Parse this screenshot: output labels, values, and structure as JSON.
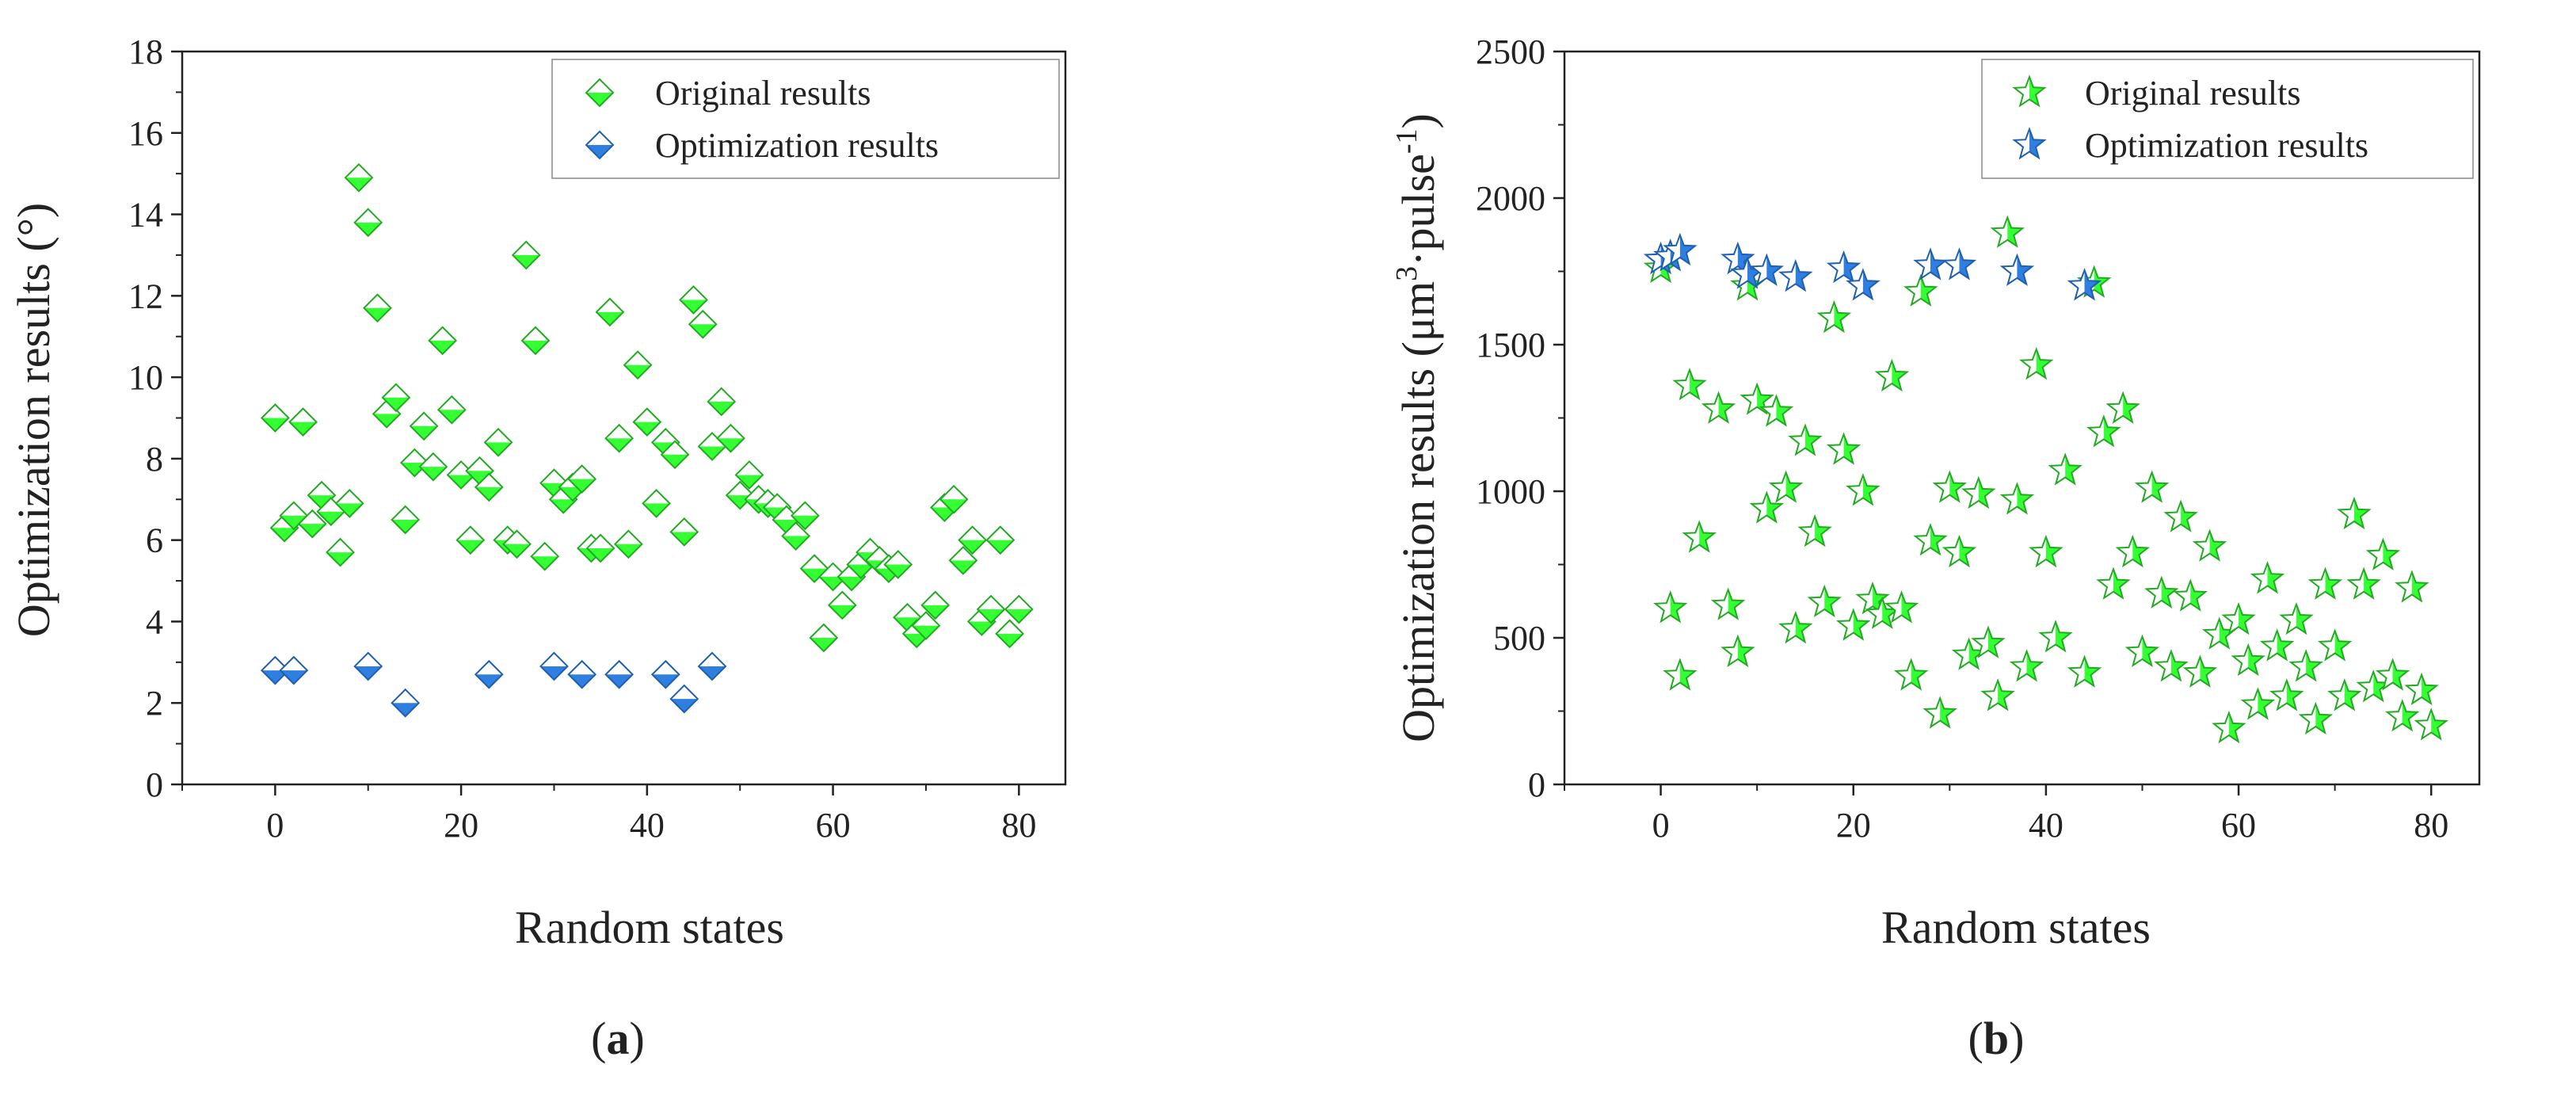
{
  "figure": {
    "panel_a_caption": {
      "open": "(",
      "letter": "a",
      "close": ")"
    },
    "panel_b_caption": {
      "open": "(",
      "letter": "b",
      "close": ")"
    }
  },
  "colors": {
    "original": "#33ff33",
    "original_edge": "#22aa22",
    "optimization": "#2f7fe0",
    "optimization_edge": "#1f5fb0",
    "axis": "#222222"
  },
  "chart_data": [
    {
      "type": "scatter",
      "marker": "half-filled-diamond",
      "xlabel": "Random states",
      "ylabel": "Optimization results (°)",
      "xlim": [
        -10,
        85
      ],
      "ylim": [
        0,
        18
      ],
      "xticks": [
        0,
        20,
        40,
        60,
        80
      ],
      "yticks": [
        0,
        2,
        4,
        6,
        8,
        10,
        12,
        14,
        16,
        18
      ],
      "legend_position": "top-right",
      "series": [
        {
          "name": "Original results",
          "x": [
            0,
            1,
            2,
            3,
            4,
            5,
            6,
            7,
            8,
            9,
            10,
            11,
            12,
            13,
            14,
            15,
            16,
            17,
            18,
            19,
            20,
            21,
            22,
            23,
            24,
            25,
            26,
            27,
            28,
            29,
            30,
            31,
            32,
            33,
            34,
            35,
            36,
            37,
            38,
            39,
            40,
            41,
            42,
            43,
            44,
            45,
            46,
            47,
            48,
            49,
            50,
            51,
            52,
            53,
            54,
            55,
            56,
            57,
            58,
            59,
            60,
            61,
            62,
            63,
            64,
            65,
            66,
            67,
            68,
            69,
            70,
            71,
            72,
            73,
            74,
            75,
            76,
            77,
            78,
            79,
            80
          ],
          "y": [
            9.0,
            6.3,
            6.6,
            8.9,
            6.4,
            7.1,
            6.7,
            5.7,
            6.9,
            14.9,
            13.8,
            11.7,
            9.1,
            9.5,
            6.5,
            7.9,
            8.8,
            7.8,
            10.9,
            9.2,
            7.6,
            6.0,
            7.7,
            7.3,
            8.4,
            6.0,
            5.9,
            13.0,
            10.9,
            5.6,
            7.4,
            7.0,
            7.3,
            7.5,
            5.8,
            5.8,
            11.6,
            8.5,
            5.9,
            10.3,
            8.9,
            6.9,
            8.4,
            8.1,
            6.2,
            11.9,
            11.3,
            8.3,
            9.4,
            8.5,
            7.1,
            7.6,
            7.0,
            6.9,
            6.8,
            6.5,
            6.1,
            6.6,
            5.3,
            3.6,
            5.1,
            4.4,
            5.1,
            5.4,
            5.7,
            5.5,
            5.3,
            5.4,
            4.1,
            3.7,
            3.9,
            4.4,
            6.8,
            7.0,
            5.5,
            6.0,
            4.0,
            4.3,
            6.0,
            3.7,
            4.3
          ]
        },
        {
          "name": "Optimization results",
          "x": [
            0,
            2,
            10,
            14,
            23,
            30,
            33,
            37,
            42,
            44,
            47
          ],
          "y": [
            2.8,
            2.8,
            2.9,
            2.0,
            2.7,
            2.9,
            2.7,
            2.7,
            2.7,
            2.1,
            2.9
          ]
        }
      ]
    },
    {
      "type": "scatter",
      "marker": "half-filled-star",
      "xlabel": "Random states",
      "ylabel_main": "Optimization results (μm",
      "ylabel_sup1": "3",
      "ylabel_mid": "·pulse",
      "ylabel_sup2": "-1",
      "ylabel_end": ")",
      "xlim": [
        -10,
        85
      ],
      "ylim": [
        0,
        2500
      ],
      "xticks": [
        0,
        20,
        40,
        60,
        80
      ],
      "yticks": [
        0,
        500,
        1000,
        1500,
        2000,
        2500
      ],
      "legend_position": "top-right",
      "series": [
        {
          "name": "Original results",
          "x": [
            0,
            1,
            2,
            3,
            4,
            6,
            7,
            8,
            9,
            10,
            11,
            12,
            13,
            14,
            15,
            16,
            17,
            18,
            19,
            20,
            21,
            22,
            23,
            24,
            25,
            26,
            27,
            28,
            29,
            30,
            31,
            32,
            33,
            34,
            35,
            36,
            37,
            38,
            39,
            40,
            41,
            42,
            44,
            45,
            46,
            47,
            48,
            49,
            50,
            51,
            52,
            53,
            54,
            55,
            56,
            57,
            58,
            59,
            60,
            61,
            62,
            63,
            64,
            65,
            66,
            67,
            68,
            69,
            70,
            71,
            72,
            73,
            74,
            75,
            76,
            77,
            78,
            79,
            80
          ],
          "y": [
            1760,
            600,
            370,
            1360,
            840,
            1280,
            610,
            450,
            1700,
            1310,
            940,
            1270,
            1010,
            530,
            1170,
            860,
            620,
            1590,
            1140,
            540,
            1000,
            630,
            580,
            1390,
            600,
            370,
            1680,
            830,
            240,
            1010,
            790,
            440,
            990,
            480,
            300,
            1880,
            970,
            400,
            1430,
            790,
            500,
            1070,
            380,
            1710,
            1200,
            680,
            1280,
            790,
            450,
            1010,
            650,
            400,
            910,
            640,
            380,
            810,
            510,
            190,
            560,
            420,
            270,
            700,
            470,
            300,
            560,
            400,
            220,
            680,
            470,
            300,
            920,
            680,
            330,
            780,
            370,
            230,
            670,
            320,
            200
          ]
        },
        {
          "name": "Optimization results",
          "x": [
            0,
            1,
            2,
            8,
            9,
            11,
            14,
            19,
            21,
            28,
            31,
            37,
            44
          ],
          "y": [
            1790,
            1800,
            1820,
            1790,
            1740,
            1750,
            1730,
            1760,
            1700,
            1770,
            1770,
            1750,
            1700
          ]
        }
      ]
    }
  ]
}
